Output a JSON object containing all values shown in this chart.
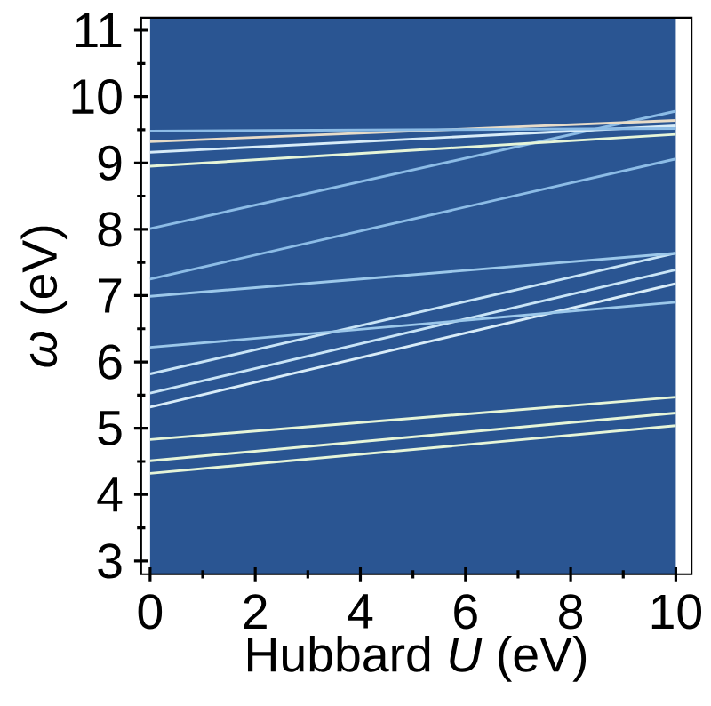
{
  "chart_data": {
    "type": "line",
    "xlabel": "Hubbard *U* (eV)",
    "ylabel": "*ω* (eV)",
    "xlim": [
      -0.17,
      10.3
    ],
    "ylim": [
      2.8,
      11.19
    ],
    "xticks": [
      0,
      2,
      4,
      6,
      8,
      10
    ],
    "yticks": [
      3,
      4,
      5,
      6,
      7,
      8,
      9,
      10,
      11
    ],
    "bands": [
      {
        "axis": "x",
        "from": 0,
        "to": 10,
        "color": "#2a5592"
      }
    ],
    "x": [
      0,
      10
    ],
    "series": [
      {
        "color": "#e6f5d8",
        "values": [
          4.32,
          5.04
        ]
      },
      {
        "color": "#e6f5d8",
        "values": [
          4.51,
          5.23
        ]
      },
      {
        "color": "#e6f5d8",
        "values": [
          4.83,
          5.47
        ]
      },
      {
        "color": "#d8ecf8",
        "values": [
          5.32,
          7.18
        ]
      },
      {
        "color": "#c8e4f6",
        "values": [
          5.53,
          7.39
        ]
      },
      {
        "color": "#c8e4f6",
        "values": [
          5.82,
          7.64
        ]
      },
      {
        "color": "#9cc8ea",
        "values": [
          6.22,
          6.9
        ]
      },
      {
        "color": "#9cc8ea",
        "values": [
          6.99,
          7.64
        ]
      },
      {
        "color": "#8cbce6",
        "values": [
          7.25,
          9.06
        ]
      },
      {
        "color": "#8cbce6",
        "values": [
          8.01,
          9.78
        ]
      },
      {
        "color": "#e6f5d8",
        "values": [
          8.95,
          9.43
        ]
      },
      {
        "color": "#d8ecf8",
        "values": [
          9.16,
          9.56
        ]
      },
      {
        "color": "#e8dcc8",
        "values": [
          9.32,
          9.64
        ]
      },
      {
        "color": "#8cbce6",
        "values": [
          9.48,
          9.52
        ]
      }
    ]
  }
}
